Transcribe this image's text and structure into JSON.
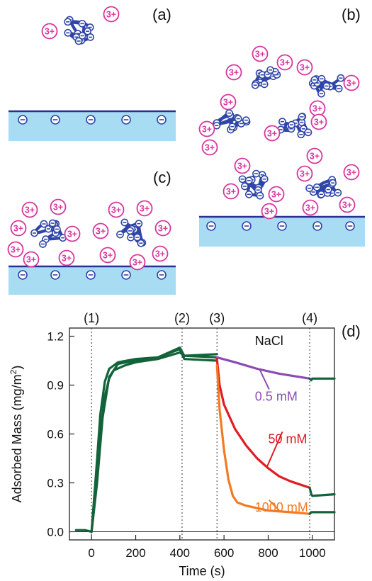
{
  "panels": {
    "a": "(a)",
    "b": "(b)",
    "c": "(c)",
    "d": "(d)"
  },
  "ion_labels": {
    "cation": "3+",
    "anion": "−"
  },
  "colors": {
    "polymer": "#2f45a8",
    "cation": "#d6379c",
    "surface": "#a7dcf2",
    "surface_line": "#2b2f8f",
    "initial": "#12633a",
    "c05": "#8a4bb3",
    "c50": "#e11b22",
    "c1000": "#f47a20"
  },
  "chart_data": {
    "type": "line",
    "xlabel": "Time  (s)",
    "ylabel": "Adsorbed Mass  (mg/m",
    "ylabel_sup": "2",
    "ylabel_close": ")",
    "xlim": [
      -100,
      1100
    ],
    "ylim": [
      -0.05,
      1.25
    ],
    "xticks": [
      0,
      200,
      400,
      600,
      800,
      1000
    ],
    "yticks": [
      0.0,
      0.3,
      0.6,
      0.9,
      1.2
    ],
    "xtick_labels": [
      "0",
      "200",
      "400",
      "600",
      "800",
      "1000"
    ],
    "ytick_labels": [
      "0.0",
      "0.3",
      "0.6",
      "0.9",
      "1.2"
    ],
    "events": [
      {
        "label": "(1)",
        "x": 0
      },
      {
        "label": "(2)",
        "x": 410
      },
      {
        "label": "(3)",
        "x": 568
      },
      {
        "label": "(4)",
        "x": 988
      }
    ],
    "annotation": "NaCl",
    "series": [
      {
        "color_key": "initial",
        "points": [
          [
            -70,
            0.01
          ],
          [
            -30,
            0.01
          ],
          [
            0,
            0.0
          ],
          [
            20,
            0.25
          ],
          [
            40,
            0.6
          ],
          [
            60,
            0.83
          ],
          [
            80,
            0.94
          ],
          [
            100,
            0.99
          ],
          [
            150,
            1.02
          ],
          [
            200,
            1.04
          ],
          [
            300,
            1.06
          ],
          [
            400,
            1.1
          ],
          [
            420,
            1.08
          ],
          [
            568,
            1.09
          ]
        ]
      },
      {
        "color_key": "initial",
        "points": [
          [
            0,
            0.0
          ],
          [
            20,
            0.35
          ],
          [
            40,
            0.72
          ],
          [
            60,
            0.92
          ],
          [
            80,
            1.0
          ],
          [
            120,
            1.04
          ],
          [
            200,
            1.06
          ],
          [
            300,
            1.07
          ],
          [
            400,
            1.12
          ],
          [
            420,
            1.06
          ],
          [
            568,
            1.05
          ]
        ]
      },
      {
        "color_key": "initial",
        "points": [
          [
            0,
            0.0
          ],
          [
            25,
            0.3
          ],
          [
            50,
            0.7
          ],
          [
            80,
            0.95
          ],
          [
            120,
            1.03
          ],
          [
            200,
            1.05
          ],
          [
            300,
            1.07
          ],
          [
            400,
            1.13
          ],
          [
            420,
            1.08
          ],
          [
            568,
            1.07
          ]
        ]
      },
      {
        "name": "0.5 mM",
        "color_key": "c05",
        "points": [
          [
            568,
            1.07
          ],
          [
            650,
            1.04
          ],
          [
            750,
            1.0
          ],
          [
            850,
            0.97
          ],
          [
            988,
            0.94
          ]
        ]
      },
      {
        "name": "50 mM",
        "color_key": "c50",
        "points": [
          [
            568,
            1.06
          ],
          [
            580,
            0.9
          ],
          [
            600,
            0.78
          ],
          [
            650,
            0.63
          ],
          [
            700,
            0.53
          ],
          [
            750,
            0.45
          ],
          [
            800,
            0.39
          ],
          [
            850,
            0.34
          ],
          [
            900,
            0.31
          ],
          [
            988,
            0.27
          ]
        ]
      },
      {
        "name": "1000 mM",
        "color_key": "c1000",
        "points": [
          [
            568,
            1.02
          ],
          [
            580,
            0.75
          ],
          [
            600,
            0.5
          ],
          [
            620,
            0.32
          ],
          [
            640,
            0.22
          ],
          [
            660,
            0.18
          ],
          [
            700,
            0.16
          ],
          [
            800,
            0.13
          ],
          [
            900,
            0.12
          ],
          [
            988,
            0.11
          ]
        ]
      },
      {
        "color_key": "initial",
        "points": [
          [
            988,
            0.94
          ],
          [
            995,
            0.93
          ],
          [
            1000,
            0.94
          ],
          [
            1100,
            0.94
          ]
        ]
      },
      {
        "color_key": "initial",
        "points": [
          [
            988,
            0.27
          ],
          [
            995,
            0.23
          ],
          [
            1000,
            0.22
          ],
          [
            1100,
            0.23
          ]
        ]
      },
      {
        "color_key": "initial",
        "points": [
          [
            988,
            0.11
          ],
          [
            995,
            0.12
          ],
          [
            1000,
            0.12
          ],
          [
            1100,
            0.12
          ]
        ]
      }
    ],
    "series_labels": [
      {
        "series": 3,
        "text": "0.5 mM",
        "at": [
          740,
          0.83
        ],
        "leader_to": [
          760,
          1.0
        ]
      },
      {
        "series": 4,
        "text": "50 mM",
        "at": [
          800,
          0.57
        ],
        "leader_to": [
          795,
          0.4
        ]
      },
      {
        "series": 5,
        "text": "1000 mM",
        "at": [
          740,
          0.15
        ],
        "leader_to": [
          850,
          0.13
        ]
      }
    ]
  }
}
